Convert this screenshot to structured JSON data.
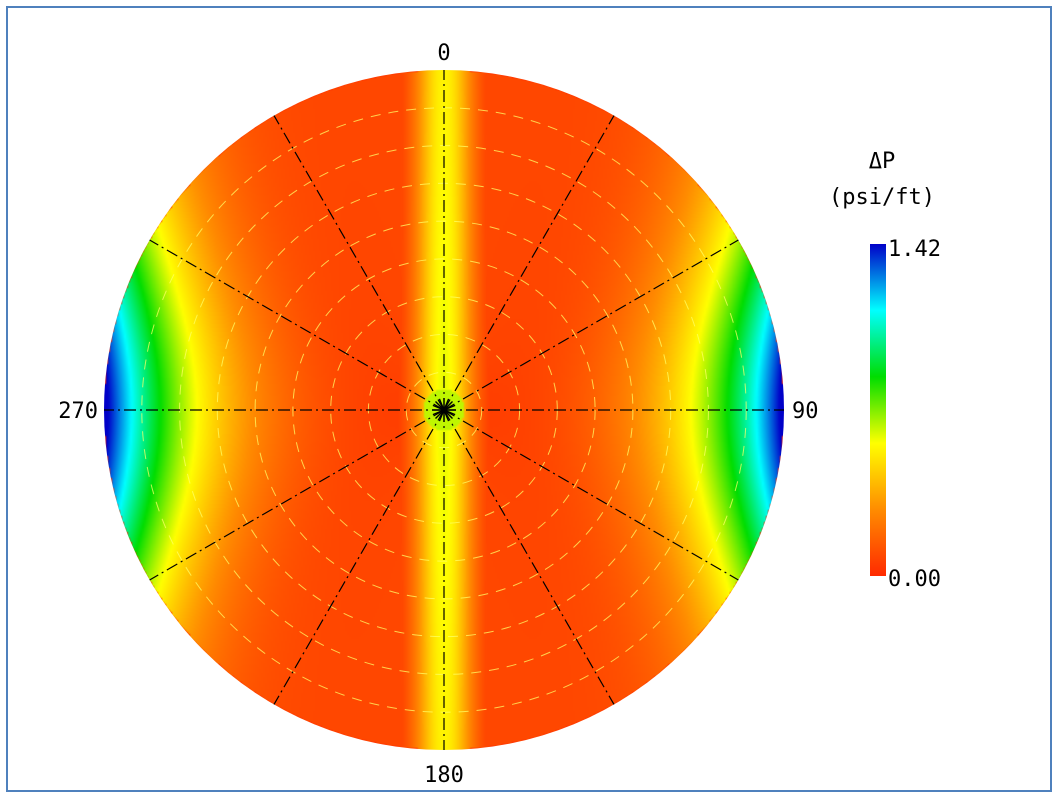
{
  "chart_data": {
    "type": "heatmap",
    "projection": "polar",
    "title": "",
    "colorbar": {
      "title_line1": "ΔP",
      "title_line2": "(psi/ft)",
      "max_label": "1.42",
      "min_label": "0.00",
      "range": [
        0,
        1.42
      ],
      "colormap": [
        "#ff2a00",
        "#ff8c00",
        "#ffff00",
        "#00dd00",
        "#00ffff",
        "#0000c8"
      ]
    },
    "angular_ticks": [
      {
        "deg": 0,
        "label": "0"
      },
      {
        "deg": 90,
        "label": "90"
      },
      {
        "deg": 180,
        "label": "180"
      },
      {
        "deg": 270,
        "label": "270"
      }
    ],
    "radial_spokes_every_deg": 30,
    "concentric_rings": 8,
    "field": {
      "description_of_pattern": "min along 0-180 axis bands near +/-45 deg, max near 90/270 at rim",
      "zero_band_offset_deg": 0,
      "value_at_rim_90": 1.42,
      "value_at_center": 0.6
    }
  }
}
